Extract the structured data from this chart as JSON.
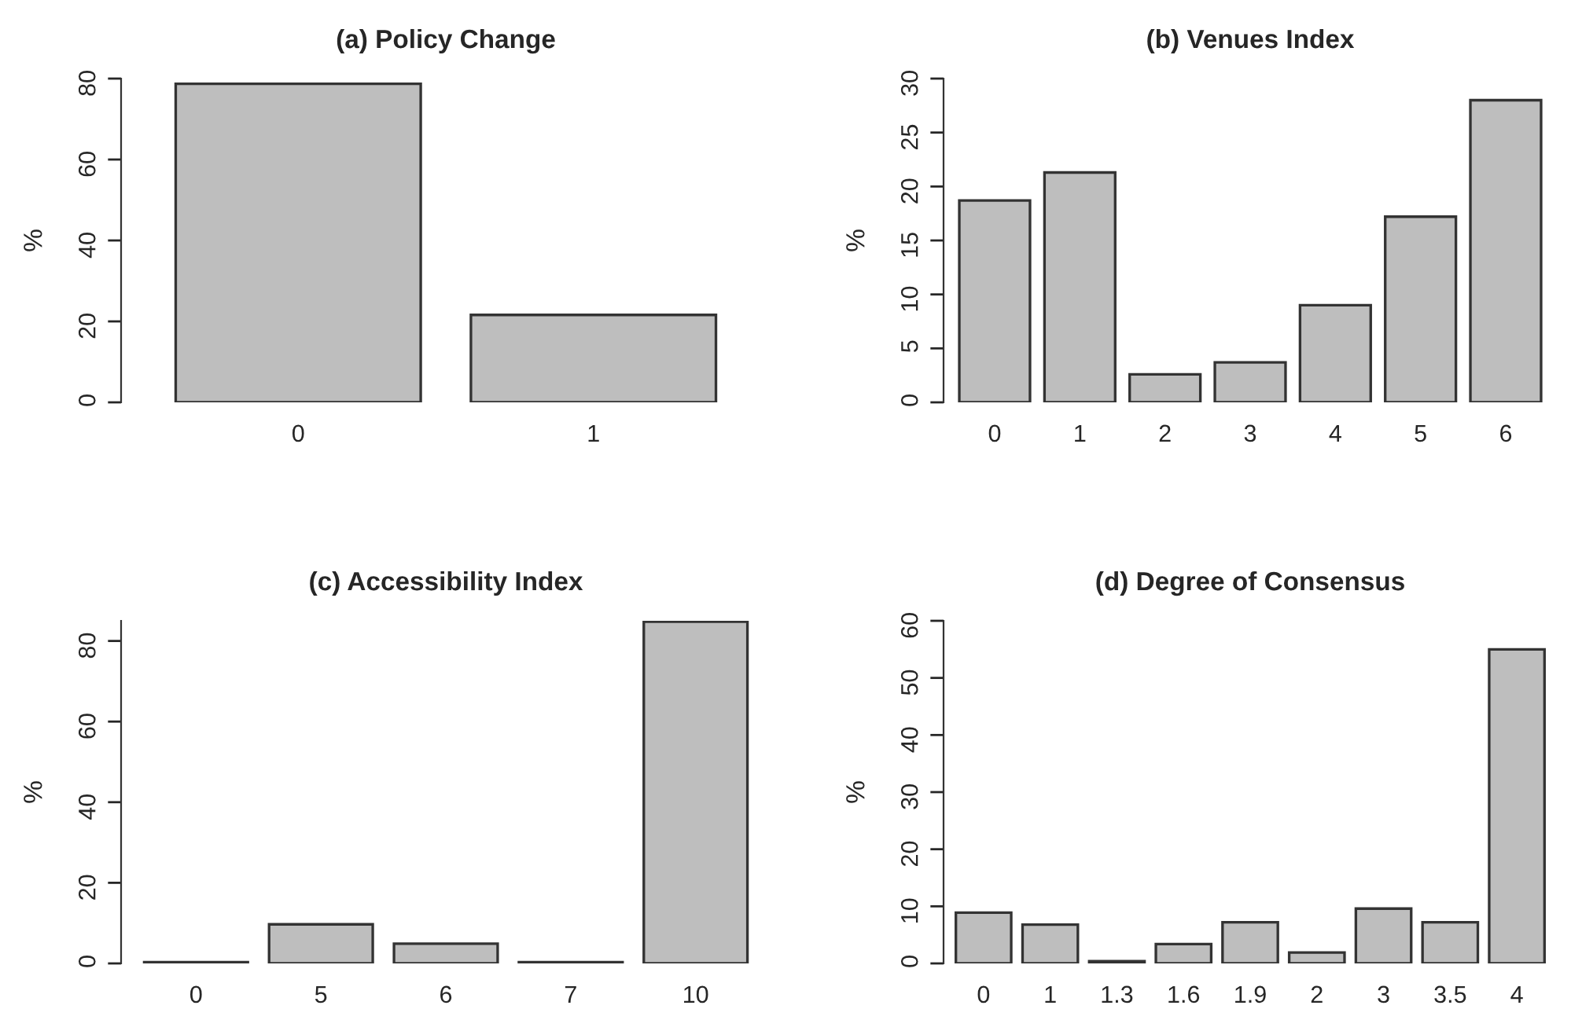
{
  "chart_data": [
    {
      "type": "bar",
      "title": "(a) Policy Change",
      "ylabel": "%",
      "categories": [
        "0",
        "1"
      ],
      "values": [
        78.7,
        21.6
      ],
      "color": "#bebebe",
      "ylim": [
        0,
        80
      ],
      "yticks": [
        0,
        20,
        40,
        60,
        80
      ],
      "grid": false
    },
    {
      "type": "bar",
      "title": "(b) Venues Index",
      "ylabel": "%",
      "categories": [
        "0",
        "1",
        "2",
        "3",
        "4",
        "5",
        "6"
      ],
      "values": [
        18.7,
        21.3,
        2.6,
        3.7,
        9.0,
        17.2,
        28.0
      ],
      "color": "#bebebe",
      "ylim": [
        0,
        30
      ],
      "yticks": [
        0,
        5,
        10,
        15,
        20,
        25,
        30
      ],
      "grid": false
    },
    {
      "type": "bar",
      "title": "(c) Accessibility Index",
      "ylabel": "%",
      "categories": [
        "0",
        "5",
        "6",
        "7",
        "10"
      ],
      "values": [
        0.3,
        9.7,
        4.9,
        0.3,
        84.8
      ],
      "color": "#bebebe",
      "ylim": [
        0,
        85
      ],
      "yticks": [
        0,
        20,
        40,
        60,
        80
      ],
      "grid": false
    },
    {
      "type": "bar",
      "title": "(d) Degree of Consensus",
      "ylabel": "%",
      "categories": [
        "0",
        "1",
        "1.3",
        "1.6",
        "1.9",
        "2",
        "3",
        "3.5",
        "4"
      ],
      "values": [
        8.9,
        6.8,
        0.4,
        3.4,
        7.2,
        1.9,
        9.6,
        7.2,
        55.0
      ],
      "color": "#bebebe",
      "ylim": [
        0,
        60
      ],
      "yticks": [
        0,
        10,
        20,
        30,
        40,
        50,
        60
      ],
      "grid": false
    }
  ]
}
